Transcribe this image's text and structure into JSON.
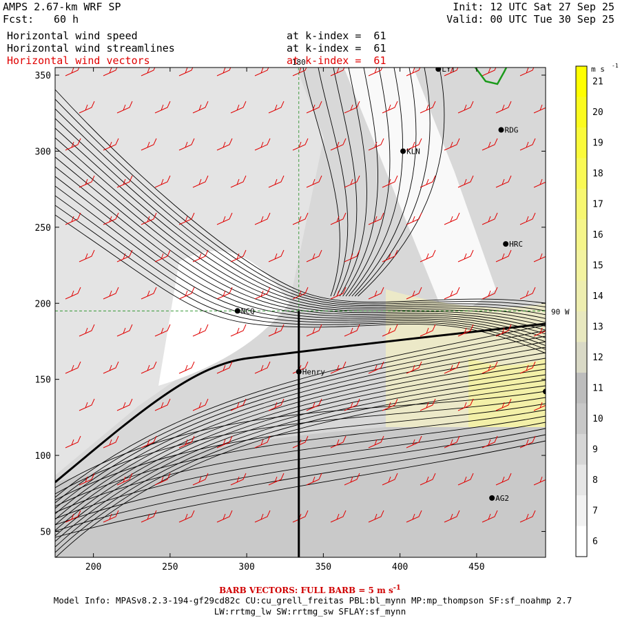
{
  "header": {
    "model": "AMPS 2.67-km WRF SP",
    "fcst_label": "Fcst:",
    "fcst_value": "60 h",
    "init": "Init: 12 UTC Sat 27 Sep 25",
    "valid": "Valid: 00 UTC Tue 30 Sep 25",
    "field1": "Horizontal wind speed",
    "field2": "Horizontal wind streamlines",
    "field3": "Horizontal wind vectors",
    "kindex1": "at k-index =  61",
    "kindex2": "at k-index =  61",
    "kindex3": "at k-index =  61"
  },
  "footer": {
    "barb_note": "BARB VECTORS:  FULL BARB = 5 m s",
    "barb_sup": "-1",
    "model_info": "Model Info: MPASv8.2.3-194-gf29cd82c CU:cu_grell_freitas PBL:bl_mynn MP:mp_thompson SF:sf_noahmp 2.7",
    "model_info2": "LW:rrtmg_lw SW:rrtmg_sw SFLAY:sf_mynn"
  },
  "map": {
    "lon_label_top": "180",
    "lon_label_right": "90 W",
    "stations": [
      {
        "name": "LYT",
        "x": 425,
        "y": 354
      },
      {
        "name": "RDG",
        "x": 466,
        "y": 314
      },
      {
        "name": "KLN",
        "x": 402,
        "y": 300
      },
      {
        "name": "HRC",
        "x": 469,
        "y": 239
      },
      {
        "name": "NCQ",
        "x": 294,
        "y": 195
      },
      {
        "name": "Henry",
        "x": 334,
        "y": 155
      },
      {
        "name": "",
        "x": 495,
        "y": 142
      },
      {
        "name": "AG2",
        "x": 460,
        "y": 72
      }
    ]
  },
  "colorbar": {
    "units": "m s",
    "units_sup": "-1",
    "levels": [
      "6",
      "7",
      "8",
      "9",
      "10",
      "11",
      "12",
      "13",
      "14",
      "15",
      "16",
      "17",
      "18",
      "19",
      "20",
      "21"
    ],
    "colors": [
      "#ffffff",
      "#f2f2f2",
      "#e6e6e6",
      "#d6d6d6",
      "#c8c8c8",
      "#bdbdbd",
      "#d9d9c6",
      "#e8e8bf",
      "#eeeeb0",
      "#f3f3a0",
      "#f5f58a",
      "#f7f770",
      "#f9f955",
      "#fafa3a",
      "#fbfb1e",
      "#ffff00"
    ]
  },
  "chart_data": {
    "type": "heatmap",
    "title": "Horizontal wind speed / streamlines / vectors at k-index = 61",
    "xlabel": "",
    "ylabel": "",
    "xlim": [
      175,
      495
    ],
    "ylim": [
      33,
      355
    ],
    "xticks": [
      200,
      250,
      300,
      350,
      400,
      450
    ],
    "yticks": [
      50,
      100,
      150,
      200,
      250,
      300,
      350
    ],
    "reference_lines": {
      "longitude_180_x": 334,
      "latitude_90W_y": 195
    },
    "cross_section_line": {
      "x": 334,
      "y_from": 33,
      "y_to": 195
    },
    "units": "m s-1"
  }
}
